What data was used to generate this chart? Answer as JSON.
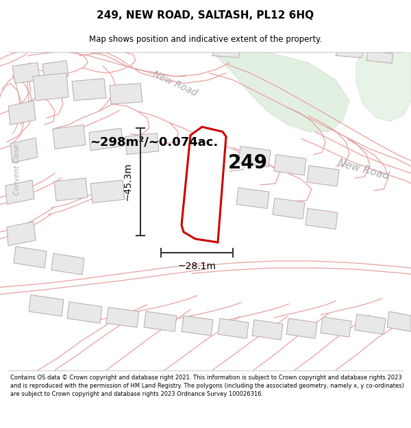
{
  "title_line1": "249, NEW ROAD, SALTASH, PL12 6HQ",
  "title_line2": "Map shows position and indicative extent of the property.",
  "footer_text": "Contains OS data © Crown copyright and database right 2021. This information is subject to Crown copyright and database rights 2023 and is reproduced with the permission of HM Land Registry. The polygons (including the associated geometry, namely x, y co-ordinates) are subject to Crown copyright and database rights 2023 Ordnance Survey 100026316.",
  "area_label": "~298m²/~0.074ac.",
  "property_number": "249",
  "dim_width": "~28.1m",
  "dim_height": "~45.3m",
  "road_label_diag": "New Road",
  "road_label_right": "New Road",
  "street_label": "Convent Close",
  "highlight_fill": "#ffffff",
  "highlight_stroke": "#cc0000",
  "road_stroke": "#e8a0a0",
  "road_boundary": "#c8a0a0",
  "building_fill": "#e8e8e8",
  "building_stroke": "#b8a8a8",
  "green_fill": "#ddeedd",
  "green_stroke": "#c8d8c8",
  "white_road_fill": "#f8f5f5",
  "map_bg": "#f8f4f4"
}
